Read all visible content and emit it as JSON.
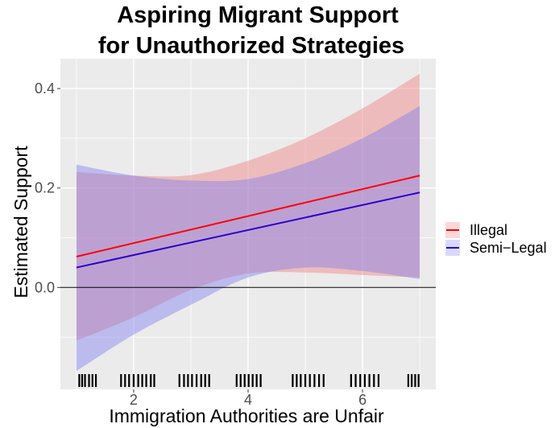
{
  "chart_data": {
    "type": "line",
    "title_lines": [
      "Aspiring Migrant Support",
      "for Unauthorized Strategies"
    ],
    "xlabel": "Immigration Authorities are Unfair",
    "ylabel": "Estimated Support",
    "xlim": [
      0.72,
      7.28
    ],
    "ylim": [
      -0.205,
      0.46
    ],
    "x_ticks": [
      2,
      4,
      6
    ],
    "x_tick_labels": [
      "2",
      "4",
      "6"
    ],
    "y_ticks": [
      0.0,
      0.2,
      0.4
    ],
    "y_tick_labels": [
      "0.0",
      "0.2",
      "0.4"
    ],
    "reference_line_y": 0.0,
    "grid": true,
    "legend_position": "right",
    "series": [
      {
        "name": "Illegal",
        "color": "#ff0000",
        "band_color": "#f08080",
        "x": [
          1,
          2,
          3,
          4,
          5,
          6,
          7
        ],
        "fit": [
          0.062,
          0.089,
          0.117,
          0.144,
          0.171,
          0.198,
          0.225
        ],
        "lower": [
          -0.107,
          -0.06,
          -0.005,
          0.028,
          0.03,
          0.025,
          0.02
        ],
        "upper": [
          0.232,
          0.225,
          0.226,
          0.255,
          0.3,
          0.36,
          0.43
        ]
      },
      {
        "name": "Semi−Legal",
        "color": "#2b00cc",
        "band_color": "#8080f0",
        "x": [
          1,
          2,
          3,
          4,
          5,
          6,
          7
        ],
        "fit": [
          0.04,
          0.065,
          0.09,
          0.116,
          0.141,
          0.166,
          0.191
        ],
        "lower": [
          -0.168,
          -0.095,
          -0.035,
          0.02,
          0.04,
          0.033,
          0.017
        ],
        "upper": [
          0.247,
          0.225,
          0.215,
          0.218,
          0.25,
          0.3,
          0.365
        ]
      }
    ],
    "rug_x": [
      1.05,
      1.1,
      1.15,
      1.22,
      1.28,
      1.34,
      1.78,
      1.85,
      1.92,
      2.0,
      2.08,
      2.15,
      2.22,
      2.3,
      2.36,
      2.8,
      2.88,
      2.95,
      3.02,
      3.1,
      3.18,
      3.25,
      3.32,
      3.8,
      3.87,
      3.94,
      4.01,
      4.08,
      4.15,
      4.22,
      4.78,
      4.85,
      4.92,
      5.0,
      5.08,
      5.16,
      5.24,
      5.32,
      5.8,
      5.88,
      5.96,
      6.04,
      6.12,
      6.2,
      6.28,
      6.8,
      6.86,
      6.92,
      6.98
    ]
  }
}
